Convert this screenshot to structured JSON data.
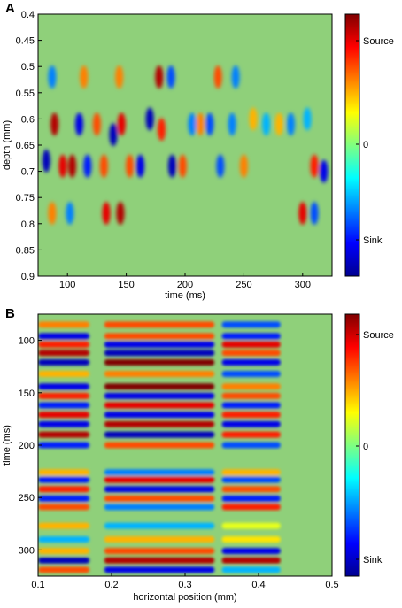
{
  "chart_data": [
    {
      "panel": "A",
      "type": "heatmap",
      "xlabel": "time (ms)",
      "ylabel": "depth (mm)",
      "xlim": [
        75,
        325
      ],
      "ylim": [
        0.4,
        0.9
      ],
      "y_reversed": true,
      "xticks": [
        100,
        150,
        200,
        250,
        300
      ],
      "yticks": [
        0.4,
        0.45,
        0.5,
        0.55,
        0.6,
        0.65,
        0.7,
        0.75,
        0.8,
        0.85,
        0.9
      ],
      "colorbar": {
        "top_label": "Source",
        "mid_label": "0",
        "bottom_label": "Sink"
      },
      "colormap": "jet",
      "blobs": [
        {
          "x": 82,
          "y": 0.68,
          "v": -0.9
        },
        {
          "x": 89,
          "y": 0.61,
          "v": 0.9
        },
        {
          "x": 96,
          "y": 0.69,
          "v": 0.8
        },
        {
          "x": 104,
          "y": 0.69,
          "v": 0.9
        },
        {
          "x": 110,
          "y": 0.61,
          "v": -0.8
        },
        {
          "x": 117,
          "y": 0.69,
          "v": -0.7
        },
        {
          "x": 125,
          "y": 0.61,
          "v": 0.6
        },
        {
          "x": 131,
          "y": 0.69,
          "v": 0.6
        },
        {
          "x": 139,
          "y": 0.63,
          "v": -0.9
        },
        {
          "x": 146,
          "y": 0.61,
          "v": 0.8
        },
        {
          "x": 153,
          "y": 0.69,
          "v": 0.6
        },
        {
          "x": 162,
          "y": 0.69,
          "v": -0.8
        },
        {
          "x": 170,
          "y": 0.6,
          "v": -0.9
        },
        {
          "x": 178,
          "y": 0.52,
          "v": 0.9
        },
        {
          "x": 180,
          "y": 0.62,
          "v": 0.7
        },
        {
          "x": 189,
          "y": 0.69,
          "v": -0.9
        },
        {
          "x": 198,
          "y": 0.69,
          "v": 0.6
        },
        {
          "x": 206,
          "y": 0.61,
          "v": -0.5
        },
        {
          "x": 213,
          "y": 0.61,
          "v": 0.5
        },
        {
          "x": 221,
          "y": 0.61,
          "v": -0.6
        },
        {
          "x": 228,
          "y": 0.52,
          "v": 0.6
        },
        {
          "x": 230,
          "y": 0.69,
          "v": -0.6
        },
        {
          "x": 240,
          "y": 0.61,
          "v": -0.5
        },
        {
          "x": 250,
          "y": 0.69,
          "v": 0.5
        },
        {
          "x": 258,
          "y": 0.6,
          "v": 0.4
        },
        {
          "x": 269,
          "y": 0.61,
          "v": -0.4
        },
        {
          "x": 280,
          "y": 0.61,
          "v": 0.4
        },
        {
          "x": 290,
          "y": 0.61,
          "v": -0.5
        },
        {
          "x": 304,
          "y": 0.6,
          "v": -0.4
        },
        {
          "x": 310,
          "y": 0.69,
          "v": 0.7
        },
        {
          "x": 318,
          "y": 0.7,
          "v": -0.8
        },
        {
          "x": 87,
          "y": 0.78,
          "v": 0.5
        },
        {
          "x": 102,
          "y": 0.78,
          "v": -0.5
        },
        {
          "x": 133,
          "y": 0.78,
          "v": 0.8
        },
        {
          "x": 145,
          "y": 0.78,
          "v": 0.9
        },
        {
          "x": 300,
          "y": 0.78,
          "v": 0.8
        },
        {
          "x": 310,
          "y": 0.78,
          "v": -0.6
        },
        {
          "x": 87,
          "y": 0.52,
          "v": -0.5
        },
        {
          "x": 114,
          "y": 0.52,
          "v": 0.5
        },
        {
          "x": 144,
          "y": 0.52,
          "v": 0.5
        },
        {
          "x": 188,
          "y": 0.52,
          "v": -0.6
        },
        {
          "x": 243,
          "y": 0.52,
          "v": -0.5
        }
      ]
    },
    {
      "panel": "B",
      "type": "heatmap",
      "xlabel": "horizontal position (mm)",
      "ylabel": "time (ms)",
      "xlim": [
        0.1,
        0.5
      ],
      "ylim": [
        75,
        325
      ],
      "y_reversed": true,
      "xticks": [
        0.1,
        0.2,
        0.3,
        0.4,
        0.5
      ],
      "yticks": [
        100,
        150,
        200,
        250,
        300
      ],
      "colorbar": {
        "top_label": "Source",
        "mid_label": "0",
        "bottom_label": "Sink"
      },
      "colormap": "jet",
      "bands": [
        {
          "t": 85,
          "v": [
            0.5,
            0.6,
            -0.6
          ]
        },
        {
          "t": 96,
          "v": [
            -0.8,
            0.6,
            -0.7
          ]
        },
        {
          "t": 104,
          "v": [
            0.7,
            -0.8,
            0.8
          ]
        },
        {
          "t": 112,
          "v": [
            0.9,
            -0.9,
            0.6
          ]
        },
        {
          "t": 121,
          "v": [
            -0.9,
            1.0,
            -0.8
          ]
        },
        {
          "t": 132,
          "v": [
            0.4,
            0.5,
            -0.6
          ]
        },
        {
          "t": 144,
          "v": [
            -0.8,
            1.0,
            0.5
          ]
        },
        {
          "t": 153,
          "v": [
            0.7,
            -0.8,
            0.6
          ]
        },
        {
          "t": 162,
          "v": [
            -0.7,
            0.8,
            -0.7
          ]
        },
        {
          "t": 171,
          "v": [
            0.8,
            -0.8,
            0.7
          ]
        },
        {
          "t": 180,
          "v": [
            -0.8,
            0.9,
            -0.8
          ]
        },
        {
          "t": 190,
          "v": [
            0.9,
            -0.9,
            0.7
          ]
        },
        {
          "t": 200,
          "v": [
            -0.7,
            0.6,
            -0.6
          ]
        },
        {
          "t": 226,
          "v": [
            0.4,
            -0.5,
            0.4
          ]
        },
        {
          "t": 233,
          "v": [
            -0.7,
            0.8,
            -0.6
          ]
        },
        {
          "t": 242,
          "v": [
            0.7,
            -0.8,
            0.6
          ]
        },
        {
          "t": 251,
          "v": [
            -0.7,
            0.6,
            -0.7
          ]
        },
        {
          "t": 259,
          "v": [
            0.6,
            -0.5,
            0.7
          ]
        },
        {
          "t": 277,
          "v": [
            0.4,
            -0.4,
            0.2
          ]
        },
        {
          "t": 290,
          "v": [
            -0.4,
            0.4,
            0.3
          ]
        },
        {
          "t": 301,
          "v": [
            0.4,
            0.6,
            -0.8
          ]
        },
        {
          "t": 310,
          "v": [
            -0.9,
            0.9,
            0.9
          ]
        },
        {
          "t": 319,
          "v": [
            0.6,
            -0.8,
            -0.4
          ]
        }
      ]
    }
  ],
  "panel_labels": [
    "A",
    "B"
  ]
}
